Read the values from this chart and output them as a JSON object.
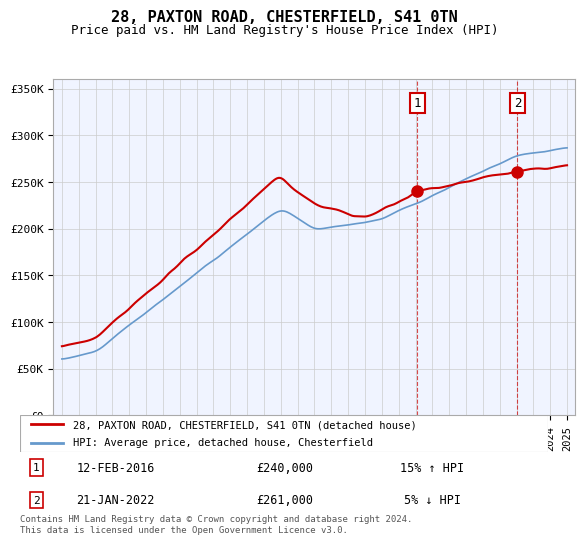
{
  "title": "28, PAXTON ROAD, CHESTERFIELD, S41 0TN",
  "subtitle": "Price paid vs. HM Land Registry's House Price Index (HPI)",
  "ylabel": "",
  "ylim": [
    0,
    360000
  ],
  "yticks": [
    0,
    50000,
    100000,
    150000,
    200000,
    250000,
    300000,
    350000
  ],
  "ytick_labels": [
    "£0",
    "£50K",
    "£100K",
    "£150K",
    "£200K",
    "£250K",
    "£300K",
    "£350K"
  ],
  "hpi_color": "#6699cc",
  "price_color": "#cc0000",
  "bg_color": "#f0f4ff",
  "sale1": {
    "date_label": "12-FEB-2016",
    "price": 240000,
    "hpi_diff": "15% ↑ HPI",
    "x": 2016.11,
    "marker_label": "1"
  },
  "sale2": {
    "date_label": "21-JAN-2022",
    "price": 261000,
    "hpi_diff": "5% ↓ HPI",
    "x": 2022.05,
    "marker_label": "2"
  },
  "legend_label1": "28, PAXTON ROAD, CHESTERFIELD, S41 0TN (detached house)",
  "legend_label2": "HPI: Average price, detached house, Chesterfield",
  "footer": "Contains HM Land Registry data © Crown copyright and database right 2024.\nThis data is licensed under the Open Government Licence v3.0.",
  "xmin": 1994.5,
  "xmax": 2025.5
}
